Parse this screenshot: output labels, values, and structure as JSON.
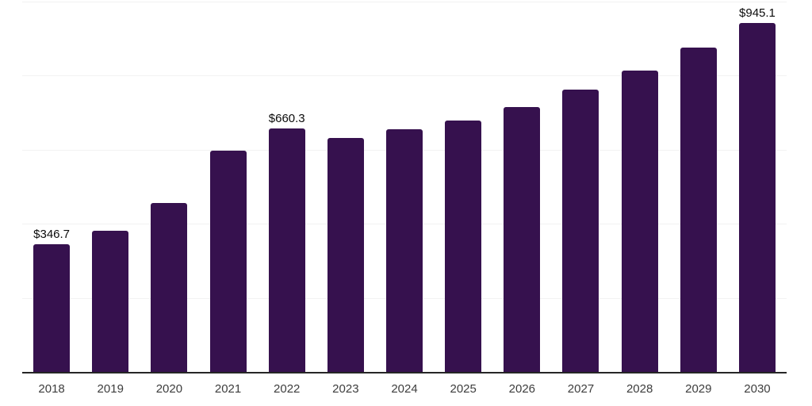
{
  "chart_data": {
    "type": "bar",
    "title": "",
    "categories": [
      "2018",
      "2019",
      "2020",
      "2021",
      "2022",
      "2023",
      "2024",
      "2025",
      "2026",
      "2027",
      "2028",
      "2029",
      "2030"
    ],
    "values": [
      346.7,
      384,
      459,
      599,
      660.3,
      633,
      658,
      682,
      717,
      764,
      816,
      878,
      945.1
    ],
    "value_labels": {
      "2018": "$346.7",
      "2022": "$660.3",
      "2030": "$945.1"
    },
    "xlabel": "",
    "ylabel": "",
    "ylim": [
      0,
      1000
    ],
    "gridline_step": 200,
    "grid": "horizontal",
    "legend": "none",
    "colors": {
      "bar": "#36114E",
      "gridline": "#f2f2f2",
      "axis_line": "#262626",
      "tick_label": "#3d3d3d",
      "value_label": "#0b0b0b",
      "background": "#ffffff"
    }
  }
}
